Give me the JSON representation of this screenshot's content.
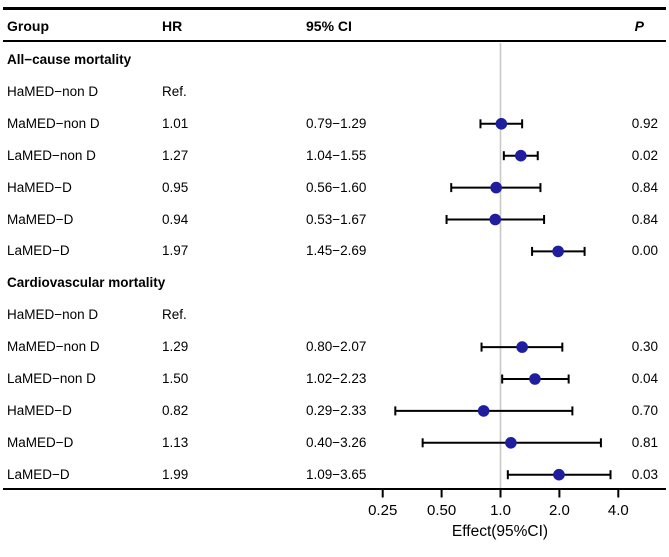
{
  "chart_data": {
    "type": "scatter",
    "variant": "forest-plot",
    "title": "",
    "xlabel": "Effect(95%CI)",
    "x_scale": "log2",
    "xlim": [
      0.16,
      6.5
    ],
    "grid": false,
    "legend": false,
    "reference_line_value": 1.0,
    "x_ticks": [
      {
        "value": 0.25,
        "label": "0.25"
      },
      {
        "value": 0.5,
        "label": "0.50"
      },
      {
        "value": 1.0,
        "label": "1.0"
      },
      {
        "value": 2.0,
        "label": "2.0"
      },
      {
        "value": 4.0,
        "label": "4.0"
      }
    ],
    "columns": {
      "group": "Group",
      "hr": "HR",
      "ci": "95% CI",
      "p": "P"
    },
    "sections": [
      {
        "label": "All−cause mortality",
        "rows": [
          {
            "group": "HaMED−non D",
            "hr": "Ref.",
            "ci": "",
            "p": "",
            "estimate": null,
            "lower": null,
            "upper": null
          },
          {
            "group": "MaMED−non D",
            "hr": "1.01",
            "ci": "0.79−1.29",
            "p": "0.92",
            "estimate": 1.01,
            "lower": 0.79,
            "upper": 1.29
          },
          {
            "group": "LaMED−non D",
            "hr": "1.27",
            "ci": "1.04−1.55",
            "p": "0.02",
            "estimate": 1.27,
            "lower": 1.04,
            "upper": 1.55
          },
          {
            "group": "HaMED−D",
            "hr": "0.95",
            "ci": "0.56−1.60",
            "p": "0.84",
            "estimate": 0.95,
            "lower": 0.56,
            "upper": 1.6
          },
          {
            "group": "MaMED−D",
            "hr": "0.94",
            "ci": "0.53−1.67",
            "p": "0.84",
            "estimate": 0.94,
            "lower": 0.53,
            "upper": 1.67
          },
          {
            "group": "LaMED−D",
            "hr": "1.97",
            "ci": "1.45−2.69",
            "p": "0.00",
            "estimate": 1.97,
            "lower": 1.45,
            "upper": 2.69
          }
        ]
      },
      {
        "label": "Cardiovascular mortality",
        "rows": [
          {
            "group": "HaMED−non D",
            "hr": "Ref.",
            "ci": "",
            "p": "",
            "estimate": null,
            "lower": null,
            "upper": null
          },
          {
            "group": "MaMED−non D",
            "hr": "1.29",
            "ci": "0.80−2.07",
            "p": "0.30",
            "estimate": 1.29,
            "lower": 0.8,
            "upper": 2.07
          },
          {
            "group": "LaMED−non D",
            "hr": "1.50",
            "ci": "1.02−2.23",
            "p": "0.04",
            "estimate": 1.5,
            "lower": 1.02,
            "upper": 2.23
          },
          {
            "group": "HaMED−D",
            "hr": "0.82",
            "ci": "0.29−2.33",
            "p": "0.70",
            "estimate": 0.82,
            "lower": 0.29,
            "upper": 2.33
          },
          {
            "group": "MaMED−D",
            "hr": "1.13",
            "ci": "0.40−3.26",
            "p": "0.81",
            "estimate": 1.13,
            "lower": 0.4,
            "upper": 3.26
          },
          {
            "group": "LaMED−D",
            "hr": "1.99",
            "ci": "1.09−3.65",
            "p": "0.03",
            "estimate": 1.99,
            "lower": 1.09,
            "upper": 3.65
          }
        ]
      }
    ],
    "colors": {
      "marker": "#1e1e9e",
      "ci_line": "#000000",
      "reference_line": "#c9c9c9",
      "text": "#000000",
      "rule": "#000000"
    }
  }
}
